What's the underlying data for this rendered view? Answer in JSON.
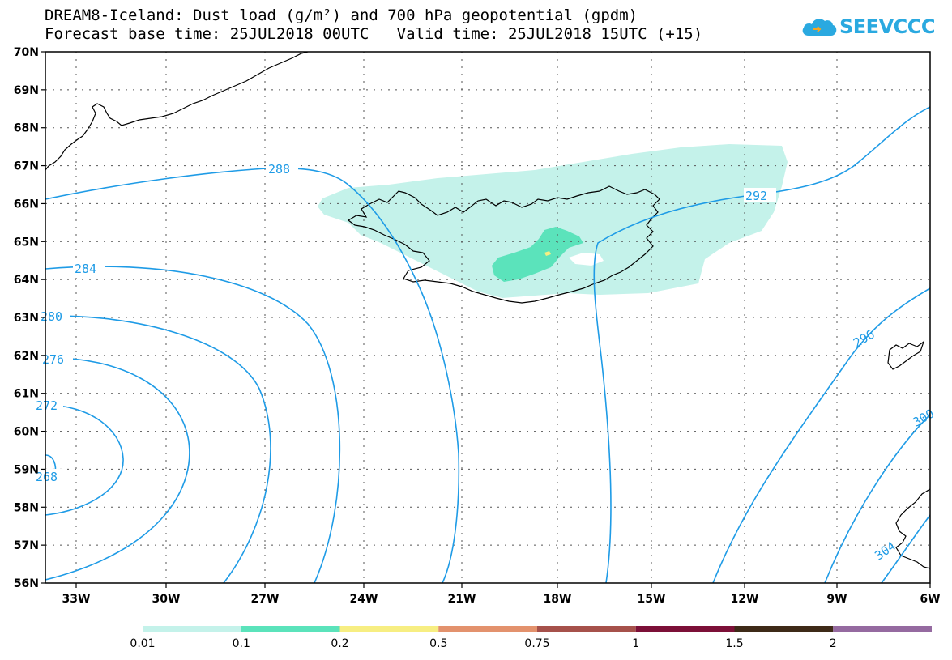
{
  "title": {
    "line1": "DREAM8-Iceland: Dust load (g/m²) and 700 hPa geopotential (gpdm)",
    "line2": "Forecast base time: 25JUL2018 00UTC   Valid time: 25JUL2018 15UTC (+15)"
  },
  "logo": {
    "text": "SEEVCCC",
    "icon": "cloud-icon",
    "color": "#2aa9e0"
  },
  "axes": {
    "lat_labels": [
      "70N",
      "69N",
      "68N",
      "67N",
      "66N",
      "65N",
      "64N",
      "63N",
      "62N",
      "61N",
      "60N",
      "59N",
      "58N",
      "57N",
      "56N"
    ],
    "lon_labels": [
      "33W",
      "30W",
      "27W",
      "24W",
      "21W",
      "18W",
      "15W",
      "12W",
      "9W",
      "6W"
    ]
  },
  "contours": {
    "color": "#1e9be6",
    "labels": [
      "288",
      "292",
      "284",
      "280",
      "276",
      "272",
      "268",
      "296",
      "300",
      "304"
    ]
  },
  "dust_colors": {
    "light": "#c4f2ea",
    "medium": "#5be3bb",
    "high": "#f7ee82"
  },
  "colorbar": {
    "colors": [
      "#c4f2ea",
      "#5be3bb",
      "#f7ee82",
      "#e3926d",
      "#a6514b",
      "#7c1038",
      "#3e2a18",
      "#956aa0"
    ],
    "labels": [
      "0.01",
      "0.1",
      "0.2",
      "0.5",
      "0.75",
      "1",
      "1.5",
      "2"
    ]
  }
}
